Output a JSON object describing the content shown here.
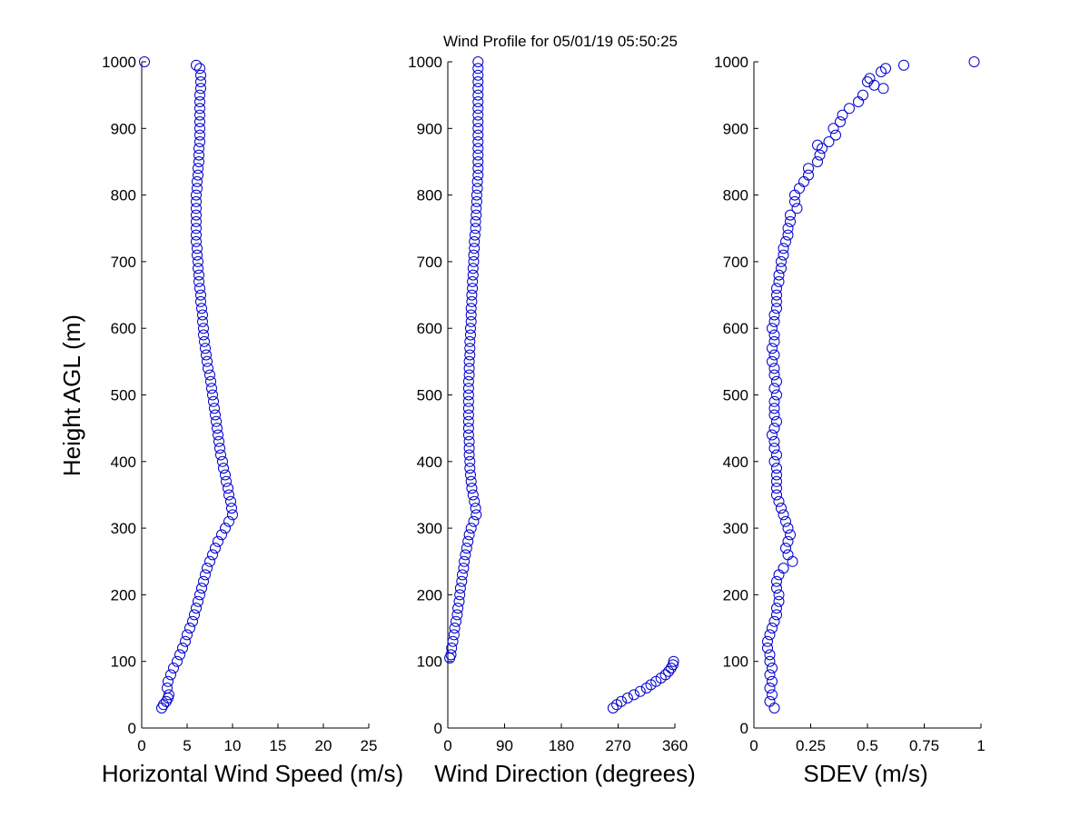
{
  "figure": {
    "title": "Wind Profile for  05/01/19 05:50:25",
    "ylabel": "Height AGL (m)",
    "marker_color": "#0000cc"
  },
  "chart_data": [
    {
      "type": "scatter",
      "name": "speed",
      "xlabel": "Horizontal Wind Speed (m/s)",
      "xlim": [
        0,
        25
      ],
      "ylim": [
        0,
        1000
      ],
      "xticks": [
        0,
        5,
        10,
        15,
        20,
        25
      ],
      "yticks": [
        0,
        100,
        200,
        300,
        400,
        500,
        600,
        700,
        800,
        900,
        1000
      ],
      "x_tick_labels": [
        "0",
        "5",
        "10",
        "15",
        "20",
        "25"
      ],
      "y_tick_labels": [
        "0",
        "100",
        "200",
        "300",
        "400",
        "500",
        "600",
        "700",
        "800",
        "900",
        "1000"
      ],
      "marker": "open-circle",
      "grid": false,
      "points": [
        [
          2.2,
          30
        ],
        [
          2.4,
          35
        ],
        [
          2.7,
          40
        ],
        [
          2.9,
          45
        ],
        [
          3.0,
          50
        ],
        [
          2.8,
          60
        ],
        [
          2.9,
          70
        ],
        [
          3.2,
          80
        ],
        [
          3.5,
          90
        ],
        [
          3.9,
          100
        ],
        [
          4.2,
          110
        ],
        [
          4.5,
          120
        ],
        [
          4.8,
          130
        ],
        [
          5.0,
          140
        ],
        [
          5.3,
          150
        ],
        [
          5.6,
          160
        ],
        [
          5.8,
          170
        ],
        [
          6.0,
          180
        ],
        [
          6.2,
          190
        ],
        [
          6.4,
          200
        ],
        [
          6.6,
          210
        ],
        [
          6.8,
          220
        ],
        [
          7.0,
          230
        ],
        [
          7.2,
          240
        ],
        [
          7.5,
          250
        ],
        [
          7.8,
          260
        ],
        [
          8.1,
          270
        ],
        [
          8.4,
          280
        ],
        [
          8.8,
          290
        ],
        [
          9.2,
          300
        ],
        [
          9.6,
          310
        ],
        [
          10.0,
          320
        ],
        [
          9.9,
          330
        ],
        [
          9.8,
          340
        ],
        [
          9.6,
          350
        ],
        [
          9.5,
          360
        ],
        [
          9.3,
          370
        ],
        [
          9.2,
          380
        ],
        [
          9.0,
          390
        ],
        [
          8.9,
          400
        ],
        [
          8.7,
          410
        ],
        [
          8.6,
          420
        ],
        [
          8.5,
          430
        ],
        [
          8.4,
          440
        ],
        [
          8.3,
          450
        ],
        [
          8.2,
          460
        ],
        [
          8.1,
          470
        ],
        [
          8.0,
          480
        ],
        [
          7.9,
          490
        ],
        [
          7.8,
          500
        ],
        [
          7.7,
          510
        ],
        [
          7.6,
          520
        ],
        [
          7.5,
          530
        ],
        [
          7.3,
          540
        ],
        [
          7.2,
          550
        ],
        [
          7.1,
          560
        ],
        [
          7.0,
          570
        ],
        [
          6.9,
          580
        ],
        [
          6.8,
          590
        ],
        [
          6.8,
          600
        ],
        [
          6.7,
          610
        ],
        [
          6.7,
          620
        ],
        [
          6.6,
          630
        ],
        [
          6.5,
          640
        ],
        [
          6.5,
          650
        ],
        [
          6.4,
          660
        ],
        [
          6.3,
          670
        ],
        [
          6.3,
          680
        ],
        [
          6.2,
          690
        ],
        [
          6.2,
          700
        ],
        [
          6.1,
          710
        ],
        [
          6.1,
          720
        ],
        [
          6.0,
          730
        ],
        [
          6.0,
          740
        ],
        [
          6.0,
          750
        ],
        [
          6.0,
          760
        ],
        [
          6.0,
          770
        ],
        [
          6.0,
          780
        ],
        [
          6.0,
          790
        ],
        [
          6.0,
          800
        ],
        [
          6.1,
          810
        ],
        [
          6.1,
          820
        ],
        [
          6.2,
          830
        ],
        [
          6.2,
          840
        ],
        [
          6.3,
          850
        ],
        [
          6.3,
          860
        ],
        [
          6.3,
          870
        ],
        [
          6.4,
          880
        ],
        [
          6.4,
          890
        ],
        [
          6.4,
          900
        ],
        [
          6.4,
          910
        ],
        [
          6.4,
          920
        ],
        [
          6.4,
          930
        ],
        [
          6.4,
          940
        ],
        [
          6.4,
          950
        ],
        [
          6.5,
          960
        ],
        [
          6.5,
          970
        ],
        [
          6.5,
          980
        ],
        [
          6.4,
          990
        ],
        [
          6.0,
          995
        ],
        [
          0.3,
          1000
        ]
      ]
    },
    {
      "type": "scatter",
      "name": "direction",
      "xlabel": "Wind Direction (degrees)",
      "xlim": [
        0,
        360
      ],
      "ylim": [
        0,
        1000
      ],
      "xticks": [
        0,
        90,
        180,
        270,
        360
      ],
      "yticks": [
        0,
        100,
        200,
        300,
        400,
        500,
        600,
        700,
        800,
        900,
        1000
      ],
      "x_tick_labels": [
        "0",
        "90",
        "180",
        "270",
        "360"
      ],
      "y_tick_labels": [
        "0",
        "100",
        "200",
        "300",
        "400",
        "500",
        "600",
        "700",
        "800",
        "900",
        "1000"
      ],
      "marker": "open-circle",
      "grid": false,
      "points": [
        [
          262,
          30
        ],
        [
          268,
          35
        ],
        [
          275,
          40
        ],
        [
          285,
          45
        ],
        [
          295,
          50
        ],
        [
          305,
          55
        ],
        [
          315,
          60
        ],
        [
          322,
          65
        ],
        [
          330,
          70
        ],
        [
          338,
          75
        ],
        [
          345,
          80
        ],
        [
          350,
          85
        ],
        [
          354,
          90
        ],
        [
          357,
          95
        ],
        [
          358,
          100
        ],
        [
          3,
          105
        ],
        [
          5,
          110
        ],
        [
          6,
          120
        ],
        [
          8,
          130
        ],
        [
          10,
          140
        ],
        [
          11,
          150
        ],
        [
          13,
          160
        ],
        [
          15,
          170
        ],
        [
          16,
          180
        ],
        [
          18,
          190
        ],
        [
          19,
          200
        ],
        [
          20,
          210
        ],
        [
          22,
          220
        ],
        [
          23,
          230
        ],
        [
          25,
          240
        ],
        [
          26,
          250
        ],
        [
          28,
          260
        ],
        [
          30,
          270
        ],
        [
          32,
          280
        ],
        [
          34,
          290
        ],
        [
          37,
          300
        ],
        [
          41,
          310
        ],
        [
          45,
          320
        ],
        [
          44,
          330
        ],
        [
          42,
          340
        ],
        [
          40,
          350
        ],
        [
          38,
          360
        ],
        [
          37,
          370
        ],
        [
          36,
          380
        ],
        [
          35,
          390
        ],
        [
          35,
          400
        ],
        [
          34,
          410
        ],
        [
          34,
          420
        ],
        [
          34,
          430
        ],
        [
          33,
          440
        ],
        [
          33,
          450
        ],
        [
          33,
          460
        ],
        [
          33,
          470
        ],
        [
          33,
          480
        ],
        [
          33,
          490
        ],
        [
          33,
          500
        ],
        [
          33,
          510
        ],
        [
          33,
          520
        ],
        [
          34,
          530
        ],
        [
          34,
          540
        ],
        [
          34,
          550
        ],
        [
          35,
          560
        ],
        [
          35,
          570
        ],
        [
          35,
          580
        ],
        [
          36,
          590
        ],
        [
          36,
          600
        ],
        [
          37,
          610
        ],
        [
          37,
          620
        ],
        [
          37,
          630
        ],
        [
          38,
          640
        ],
        [
          38,
          650
        ],
        [
          39,
          660
        ],
        [
          39,
          670
        ],
        [
          40,
          680
        ],
        [
          40,
          690
        ],
        [
          41,
          700
        ],
        [
          41,
          710
        ],
        [
          42,
          720
        ],
        [
          42,
          730
        ],
        [
          43,
          740
        ],
        [
          44,
          750
        ],
        [
          44,
          760
        ],
        [
          45,
          770
        ],
        [
          45,
          780
        ],
        [
          46,
          790
        ],
        [
          46,
          800
        ],
        [
          47,
          810
        ],
        [
          47,
          820
        ],
        [
          48,
          830
        ],
        [
          48,
          840
        ],
        [
          48,
          850
        ],
        [
          48,
          860
        ],
        [
          48,
          870
        ],
        [
          48,
          880
        ],
        [
          48,
          890
        ],
        [
          48,
          900
        ],
        [
          48,
          910
        ],
        [
          48,
          920
        ],
        [
          48,
          930
        ],
        [
          48,
          940
        ],
        [
          48,
          950
        ],
        [
          48,
          960
        ],
        [
          48,
          970
        ],
        [
          48,
          980
        ],
        [
          48,
          990
        ],
        [
          48,
          1000
        ]
      ]
    },
    {
      "type": "scatter",
      "name": "sdev",
      "xlabel": "SDEV  (m/s)",
      "xlim": [
        0,
        1
      ],
      "ylim": [
        0,
        1000
      ],
      "xticks": [
        0,
        0.25,
        0.5,
        0.75,
        1
      ],
      "yticks": [
        0,
        100,
        200,
        300,
        400,
        500,
        600,
        700,
        800,
        900,
        1000
      ],
      "x_tick_labels": [
        "0",
        "0.25",
        "0.5",
        "0.75",
        "1"
      ],
      "y_tick_labels": [
        "0",
        "100",
        "200",
        "300",
        "400",
        "500",
        "600",
        "700",
        "800",
        "900",
        "1000"
      ],
      "marker": "open-circle",
      "grid": false,
      "points": [
        [
          0.09,
          30
        ],
        [
          0.07,
          40
        ],
        [
          0.08,
          50
        ],
        [
          0.07,
          60
        ],
        [
          0.08,
          70
        ],
        [
          0.07,
          80
        ],
        [
          0.08,
          90
        ],
        [
          0.07,
          100
        ],
        [
          0.07,
          110
        ],
        [
          0.06,
          120
        ],
        [
          0.06,
          130
        ],
        [
          0.07,
          140
        ],
        [
          0.08,
          150
        ],
        [
          0.09,
          160
        ],
        [
          0.1,
          170
        ],
        [
          0.1,
          180
        ],
        [
          0.11,
          190
        ],
        [
          0.11,
          200
        ],
        [
          0.1,
          210
        ],
        [
          0.1,
          220
        ],
        [
          0.11,
          230
        ],
        [
          0.13,
          240
        ],
        [
          0.17,
          250
        ],
        [
          0.15,
          260
        ],
        [
          0.14,
          270
        ],
        [
          0.15,
          280
        ],
        [
          0.16,
          290
        ],
        [
          0.15,
          300
        ],
        [
          0.14,
          310
        ],
        [
          0.13,
          320
        ],
        [
          0.12,
          330
        ],
        [
          0.11,
          340
        ],
        [
          0.1,
          350
        ],
        [
          0.1,
          360
        ],
        [
          0.1,
          370
        ],
        [
          0.1,
          380
        ],
        [
          0.1,
          390
        ],
        [
          0.09,
          400
        ],
        [
          0.1,
          410
        ],
        [
          0.09,
          420
        ],
        [
          0.09,
          430
        ],
        [
          0.08,
          440
        ],
        [
          0.09,
          450
        ],
        [
          0.1,
          460
        ],
        [
          0.09,
          470
        ],
        [
          0.09,
          480
        ],
        [
          0.09,
          490
        ],
        [
          0.1,
          500
        ],
        [
          0.09,
          510
        ],
        [
          0.1,
          520
        ],
        [
          0.09,
          530
        ],
        [
          0.09,
          540
        ],
        [
          0.08,
          550
        ],
        [
          0.09,
          560
        ],
        [
          0.08,
          570
        ],
        [
          0.09,
          580
        ],
        [
          0.09,
          590
        ],
        [
          0.08,
          600
        ],
        [
          0.09,
          610
        ],
        [
          0.09,
          620
        ],
        [
          0.1,
          630
        ],
        [
          0.1,
          640
        ],
        [
          0.1,
          650
        ],
        [
          0.1,
          660
        ],
        [
          0.11,
          670
        ],
        [
          0.11,
          680
        ],
        [
          0.12,
          690
        ],
        [
          0.12,
          700
        ],
        [
          0.13,
          710
        ],
        [
          0.13,
          720
        ],
        [
          0.14,
          730
        ],
        [
          0.15,
          740
        ],
        [
          0.15,
          750
        ],
        [
          0.16,
          760
        ],
        [
          0.16,
          770
        ],
        [
          0.19,
          780
        ],
        [
          0.18,
          790
        ],
        [
          0.18,
          800
        ],
        [
          0.2,
          810
        ],
        [
          0.22,
          820
        ],
        [
          0.24,
          830
        ],
        [
          0.24,
          840
        ],
        [
          0.28,
          850
        ],
        [
          0.29,
          860
        ],
        [
          0.3,
          870
        ],
        [
          0.28,
          875
        ],
        [
          0.33,
          880
        ],
        [
          0.36,
          890
        ],
        [
          0.35,
          900
        ],
        [
          0.38,
          910
        ],
        [
          0.39,
          920
        ],
        [
          0.42,
          930
        ],
        [
          0.46,
          940
        ],
        [
          0.48,
          950
        ],
        [
          0.57,
          960
        ],
        [
          0.53,
          965
        ],
        [
          0.5,
          970
        ],
        [
          0.51,
          975
        ],
        [
          0.58,
          990
        ],
        [
          0.56,
          985
        ],
        [
          0.66,
          995
        ],
        [
          0.97,
          1000
        ]
      ]
    }
  ]
}
